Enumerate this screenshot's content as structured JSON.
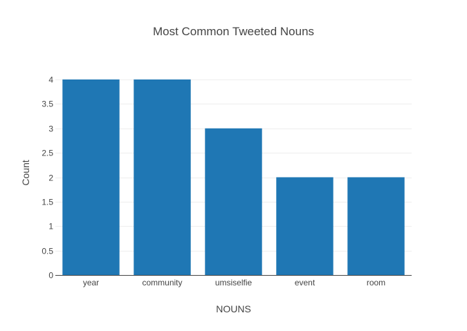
{
  "chart_data": {
    "type": "bar",
    "title": "Most Common Tweeted Nouns",
    "xlabel": "NOUNS",
    "ylabel": "Count",
    "categories": [
      "year",
      "community",
      "umsiselfie",
      "event",
      "room"
    ],
    "values": [
      4,
      4,
      3,
      2,
      2
    ],
    "ylim": [
      0,
      4
    ],
    "yticks": [
      "0",
      "0.5",
      "1",
      "1.5",
      "2",
      "2.5",
      "3",
      "3.5",
      "4"
    ],
    "bar_color": "#1f77b4",
    "grid": true,
    "legend": "none"
  }
}
